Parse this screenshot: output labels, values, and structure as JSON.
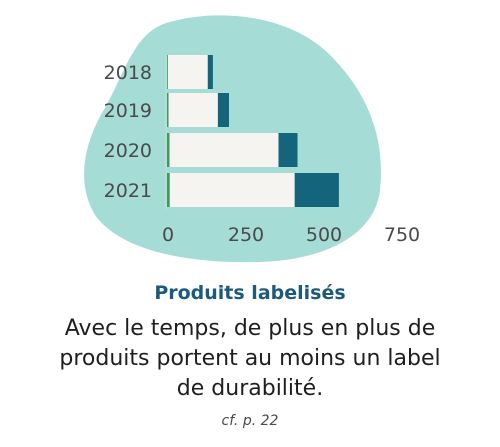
{
  "chart_data": {
    "type": "bar",
    "orientation": "horizontal",
    "stacked": true,
    "categories": [
      "2018",
      "2019",
      "2020",
      "2021"
    ],
    "series": [
      {
        "color": "#3f9a5a",
        "values": [
          3,
          5,
          8,
          9
        ]
      },
      {
        "color": "#f6f4f1",
        "values": [
          126,
          156,
          345,
          395
        ]
      },
      {
        "color": "#14647c",
        "values": [
          16,
          35,
          60,
          140
        ]
      }
    ],
    "xticks": [
      "0",
      "250",
      "500",
      "750"
    ],
    "xlim": [
      0,
      750
    ],
    "grid": false,
    "background_blob_color": "#a5dcd6"
  },
  "headline": "Produits labelisés",
  "subtitle_lines": [
    "Avec le temps, de plus en plus de",
    "produits portent au moins un label",
    "de durabilité."
  ],
  "reference": "cf. p. 22"
}
